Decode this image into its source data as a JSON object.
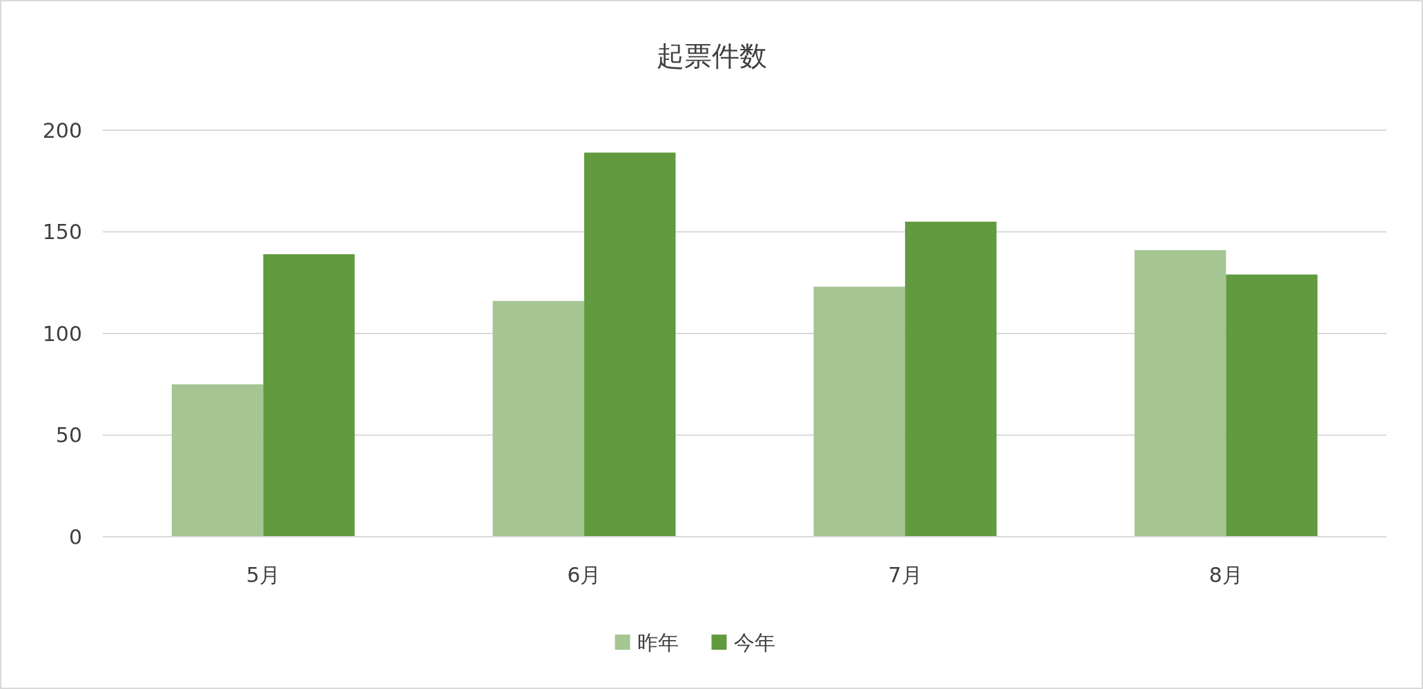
{
  "chart_data": {
    "type": "bar",
    "title": "起票件数",
    "categories": [
      "5月",
      "6月",
      "7月",
      "8月"
    ],
    "series": [
      {
        "name": "昨年",
        "color": "#a5c593",
        "values": [
          75,
          116,
          123,
          141
        ]
      },
      {
        "name": "今年",
        "color": "#629a3f",
        "values": [
          139,
          189,
          155,
          129
        ]
      }
    ],
    "ylim": [
      0,
      200
    ],
    "yticks": [
      0,
      50,
      100,
      150,
      200
    ],
    "grid": "y",
    "legend": "bottom"
  }
}
